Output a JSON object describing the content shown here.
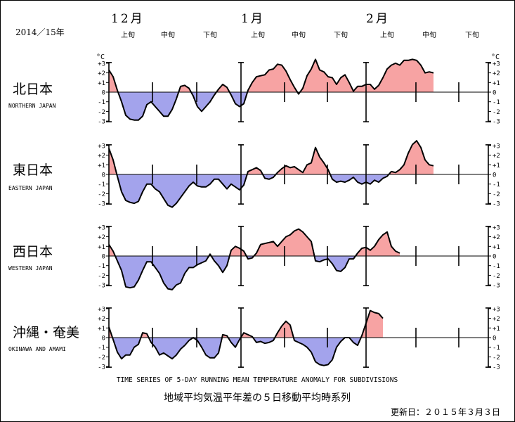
{
  "header": {
    "year_label": "2014／15年",
    "months": [
      "12月",
      "1月",
      "2月"
    ],
    "dekads": [
      "上旬",
      "中旬",
      "下旬"
    ]
  },
  "footer": {
    "english_title": "TIME SERIES OF 5-DAY RUNNING MEAN TEMPERATURE ANOMALY FOR SUBDIVISIONS",
    "japanese_title": "地域平均気温平年差の５日移動平均時系列",
    "updated": "更新日：２０１５年３月３日"
  },
  "colors": {
    "positive": "#f7a3a3",
    "negative": "#a3a3ec",
    "line": "#000000"
  },
  "chart_data": [
    {
      "type": "area",
      "region_jp": "北日本",
      "region_en": "NORTHERN JAPAN",
      "unit": "°C",
      "x_range": [
        "2014-12-01",
        "2015-03-01"
      ],
      "ylim": [
        -3,
        3
      ],
      "yticks": [
        "+3",
        "+2",
        "+1",
        "0",
        "-1",
        "-2",
        "-3"
      ],
      "points": [
        [
          0,
          2.3
        ],
        [
          1,
          1.6
        ],
        [
          2,
          0.2
        ],
        [
          3,
          -1.0
        ],
        [
          4,
          -2.4
        ],
        [
          5,
          -2.8
        ],
        [
          6,
          -2.9
        ],
        [
          7,
          -2.9
        ],
        [
          8,
          -2.5
        ],
        [
          9,
          -1.3
        ],
        [
          10,
          -1.0
        ],
        [
          11,
          -1.5
        ],
        [
          12,
          -2.0
        ],
        [
          13,
          -2.5
        ],
        [
          14,
          -2.5
        ],
        [
          15,
          -1.8
        ],
        [
          16,
          -0.7
        ],
        [
          17,
          0.6
        ],
        [
          18,
          0.7
        ],
        [
          19,
          0.4
        ],
        [
          20,
          -0.4
        ],
        [
          21,
          -1.5
        ],
        [
          22,
          -2.0
        ],
        [
          23,
          -1.5
        ],
        [
          24,
          -1.0
        ],
        [
          25,
          -0.3
        ],
        [
          26,
          0.3
        ],
        [
          27,
          0.8
        ],
        [
          28,
          0.5
        ],
        [
          29,
          -0.3
        ],
        [
          30,
          -1.2
        ],
        [
          31,
          -1.5
        ],
        [
          32,
          -1.2
        ],
        [
          33,
          0.2
        ],
        [
          34,
          1.0
        ],
        [
          35,
          1.6
        ],
        [
          36,
          1.7
        ],
        [
          37,
          1.8
        ],
        [
          38,
          2.3
        ],
        [
          39,
          2.4
        ],
        [
          40,
          2.9
        ],
        [
          41,
          2.8
        ],
        [
          42,
          2.2
        ],
        [
          43,
          1.3
        ],
        [
          44,
          0.5
        ],
        [
          45,
          -0.2
        ],
        [
          46,
          0.4
        ],
        [
          47,
          1.7
        ],
        [
          48,
          2.4
        ],
        [
          49,
          3.4
        ],
        [
          50,
          2.3
        ],
        [
          51,
          2.1
        ],
        [
          52,
          1.6
        ],
        [
          53,
          1.5
        ],
        [
          54,
          0.8
        ],
        [
          55,
          1.5
        ],
        [
          56,
          1.8
        ],
        [
          57,
          1.0
        ],
        [
          58,
          0.1
        ],
        [
          59,
          0.6
        ],
        [
          60,
          0.6
        ],
        [
          61,
          0.8
        ],
        [
          62,
          0.8
        ],
        [
          63,
          0.3
        ],
        [
          64,
          0.7
        ],
        [
          65,
          1.5
        ],
        [
          66,
          2.4
        ],
        [
          67,
          2.8
        ],
        [
          68,
          3.0
        ],
        [
          69,
          2.8
        ],
        [
          70,
          3.3
        ],
        [
          71,
          3.3
        ],
        [
          72,
          3.4
        ],
        [
          73,
          3.3
        ],
        [
          74,
          2.8
        ],
        [
          75,
          2.0
        ],
        [
          76,
          2.1
        ],
        [
          77,
          2.0
        ]
      ]
    },
    {
      "type": "area",
      "region_jp": "東日本",
      "region_en": "EASTERN JAPAN",
      "unit": "°C",
      "x_range": [
        "2014-12-01",
        "2015-03-01"
      ],
      "ylim": [
        -3,
        3
      ],
      "yticks": [
        "+3",
        "+2",
        "+1",
        "0",
        "-1",
        "-2",
        "-3"
      ],
      "points": [
        [
          0,
          2.7
        ],
        [
          1,
          1.5
        ],
        [
          2,
          -0.2
        ],
        [
          3,
          -1.8
        ],
        [
          4,
          -2.7
        ],
        [
          5,
          -2.9
        ],
        [
          6,
          -3.0
        ],
        [
          7,
          -2.8
        ],
        [
          8,
          -1.8
        ],
        [
          9,
          -1.0
        ],
        [
          10,
          -1.0
        ],
        [
          11,
          -1.5
        ],
        [
          12,
          -1.8
        ],
        [
          13,
          -2.5
        ],
        [
          14,
          -3.2
        ],
        [
          15,
          -3.4
        ],
        [
          16,
          -3.0
        ],
        [
          17,
          -2.4
        ],
        [
          18,
          -1.8
        ],
        [
          19,
          -1.2
        ],
        [
          20,
          -0.8
        ],
        [
          21,
          -1.2
        ],
        [
          22,
          -1.3
        ],
        [
          23,
          -1.3
        ],
        [
          24,
          -1.0
        ],
        [
          25,
          -0.5
        ],
        [
          26,
          -0.5
        ],
        [
          27,
          -1.0
        ],
        [
          28,
          -1.5
        ],
        [
          29,
          -1.0
        ],
        [
          30,
          -1.3
        ],
        [
          31,
          -1.6
        ],
        [
          32,
          -1.1
        ],
        [
          33,
          0.3
        ],
        [
          34,
          0.5
        ],
        [
          35,
          0.7
        ],
        [
          36,
          0.4
        ],
        [
          37,
          -0.4
        ],
        [
          38,
          -0.5
        ],
        [
          39,
          -0.3
        ],
        [
          40,
          0.2
        ],
        [
          41,
          0.6
        ],
        [
          42,
          0.9
        ],
        [
          43,
          0.7
        ],
        [
          44,
          0.8
        ],
        [
          45,
          0.5
        ],
        [
          46,
          0.2
        ],
        [
          47,
          1.0
        ],
        [
          48,
          1.2
        ],
        [
          49,
          2.8
        ],
        [
          50,
          1.8
        ],
        [
          51,
          1.2
        ],
        [
          52,
          0.5
        ],
        [
          53,
          -0.5
        ],
        [
          54,
          -0.8
        ],
        [
          55,
          -0.7
        ],
        [
          56,
          -0.8
        ],
        [
          57,
          -0.6
        ],
        [
          58,
          -0.3
        ],
        [
          59,
          -0.8
        ],
        [
          60,
          -1.0
        ],
        [
          61,
          -0.8
        ],
        [
          62,
          -1.0
        ],
        [
          63,
          -0.6
        ],
        [
          64,
          -0.8
        ],
        [
          65,
          -0.4
        ],
        [
          66,
          -0.2
        ],
        [
          67,
          0.3
        ],
        [
          68,
          0.2
        ],
        [
          69,
          0.5
        ],
        [
          70,
          1.0
        ],
        [
          71,
          2.2
        ],
        [
          72,
          3.1
        ],
        [
          73,
          3.5
        ],
        [
          74,
          2.8
        ],
        [
          75,
          1.5
        ],
        [
          76,
          1.0
        ],
        [
          77,
          0.9
        ]
      ]
    },
    {
      "type": "area",
      "region_jp": "西日本",
      "region_en": "WESTERN JAPAN",
      "unit": "°C",
      "x_range": [
        "2014-12-01",
        "2015-03-01"
      ],
      "ylim": [
        -3,
        3
      ],
      "yticks": [
        "+3",
        "+2",
        "+1",
        "0",
        "-1",
        "-2",
        "-3"
      ],
      "points": [
        [
          0,
          1.2
        ],
        [
          1,
          0.5
        ],
        [
          2,
          -0.5
        ],
        [
          3,
          -1.5
        ],
        [
          4,
          -3.2
        ],
        [
          5,
          -3.3
        ],
        [
          6,
          -3.2
        ],
        [
          7,
          -2.5
        ],
        [
          8,
          -1.5
        ],
        [
          9,
          -0.6
        ],
        [
          10,
          -0.6
        ],
        [
          11,
          -1.2
        ],
        [
          12,
          -1.8
        ],
        [
          13,
          -2.8
        ],
        [
          14,
          -3.4
        ],
        [
          15,
          -3.5
        ],
        [
          16,
          -3.0
        ],
        [
          17,
          -2.8
        ],
        [
          18,
          -1.8
        ],
        [
          19,
          -1.2
        ],
        [
          20,
          -1.2
        ],
        [
          21,
          -0.9
        ],
        [
          22,
          -0.7
        ],
        [
          23,
          -0.5
        ],
        [
          24,
          0.2
        ],
        [
          25,
          -0.5
        ],
        [
          26,
          -1.0
        ],
        [
          27,
          -1.7
        ],
        [
          28,
          -1.0
        ],
        [
          29,
          0.6
        ],
        [
          30,
          1.0
        ],
        [
          31,
          0.8
        ],
        [
          32,
          0.5
        ],
        [
          33,
          -0.3
        ],
        [
          34,
          -0.2
        ],
        [
          35,
          0.3
        ],
        [
          36,
          1.2
        ],
        [
          37,
          1.3
        ],
        [
          38,
          1.4
        ],
        [
          39,
          1.5
        ],
        [
          40,
          1.0
        ],
        [
          41,
          1.5
        ],
        [
          42,
          2.0
        ],
        [
          43,
          2.2
        ],
        [
          44,
          2.6
        ],
        [
          45,
          2.8
        ],
        [
          46,
          2.5
        ],
        [
          47,
          2.0
        ],
        [
          48,
          1.5
        ],
        [
          49,
          -0.5
        ],
        [
          50,
          -0.6
        ],
        [
          51,
          -0.4
        ],
        [
          52,
          -0.3
        ],
        [
          53,
          -0.8
        ],
        [
          54,
          -1.5
        ],
        [
          55,
          -1.6
        ],
        [
          56,
          -1.2
        ],
        [
          57,
          -0.3
        ],
        [
          58,
          -0.3
        ],
        [
          59,
          0.3
        ],
        [
          60,
          0.8
        ],
        [
          61,
          0.9
        ],
        [
          62,
          0.6
        ],
        [
          63,
          1.0
        ],
        [
          64,
          1.7
        ],
        [
          65,
          2.2
        ],
        [
          66,
          2.5
        ],
        [
          67,
          1.0
        ],
        [
          68,
          0.5
        ],
        [
          69,
          0.3
        ]
      ]
    },
    {
      "type": "area",
      "region_jp": "沖縄・奄美",
      "region_en": "OKINAWA AND AMAMI",
      "unit": "°C",
      "x_range": [
        "2014-12-01",
        "2015-03-01"
      ],
      "ylim": [
        -3,
        3
      ],
      "yticks": [
        "+3",
        "+2",
        "+1",
        "0",
        "-1",
        "-2",
        "-3"
      ],
      "points": [
        [
          0,
          1.1
        ],
        [
          1,
          -0.2
        ],
        [
          2,
          -1.5
        ],
        [
          3,
          -2.2
        ],
        [
          4,
          -1.8
        ],
        [
          5,
          -1.8
        ],
        [
          6,
          -1.0
        ],
        [
          7,
          -0.7
        ],
        [
          8,
          0.5
        ],
        [
          9,
          0.4
        ],
        [
          10,
          -0.5
        ],
        [
          11,
          -1.0
        ],
        [
          12,
          -1.8
        ],
        [
          13,
          -1.6
        ],
        [
          14,
          -1.9
        ],
        [
          15,
          -2.2
        ],
        [
          16,
          -1.8
        ],
        [
          17,
          -1.2
        ],
        [
          18,
          -0.8
        ],
        [
          19,
          -0.3
        ],
        [
          20,
          0.0
        ],
        [
          21,
          -0.3
        ],
        [
          22,
          -1.0
        ],
        [
          23,
          -1.8
        ],
        [
          24,
          -2.1
        ],
        [
          25,
          -2.1
        ],
        [
          26,
          -1.6
        ],
        [
          27,
          0.3
        ],
        [
          28,
          0.2
        ],
        [
          29,
          -0.5
        ],
        [
          30,
          -1.0
        ],
        [
          31,
          -0.2
        ],
        [
          32,
          0.5
        ],
        [
          33,
          0.3
        ],
        [
          34,
          0.1
        ],
        [
          35,
          -0.5
        ],
        [
          36,
          -0.4
        ],
        [
          37,
          -0.6
        ],
        [
          38,
          -0.5
        ],
        [
          39,
          -0.3
        ],
        [
          40,
          0.5
        ],
        [
          41,
          1.2
        ],
        [
          42,
          1.7
        ],
        [
          43,
          1.3
        ],
        [
          44,
          -0.3
        ],
        [
          45,
          -0.5
        ],
        [
          46,
          -0.7
        ],
        [
          47,
          -1.0
        ],
        [
          48,
          -1.5
        ],
        [
          49,
          -2.5
        ],
        [
          50,
          -2.8
        ],
        [
          51,
          -2.9
        ],
        [
          52,
          -2.8
        ],
        [
          53,
          -2.3
        ],
        [
          54,
          -1.0
        ],
        [
          55,
          -0.4
        ],
        [
          56,
          0.0
        ],
        [
          57,
          0.0
        ],
        [
          58,
          -0.5
        ],
        [
          59,
          -0.8
        ],
        [
          60,
          0.2
        ],
        [
          61,
          1.5
        ],
        [
          62,
          2.8
        ],
        [
          63,
          2.6
        ],
        [
          64,
          2.5
        ],
        [
          65,
          2.0
        ]
      ]
    }
  ]
}
